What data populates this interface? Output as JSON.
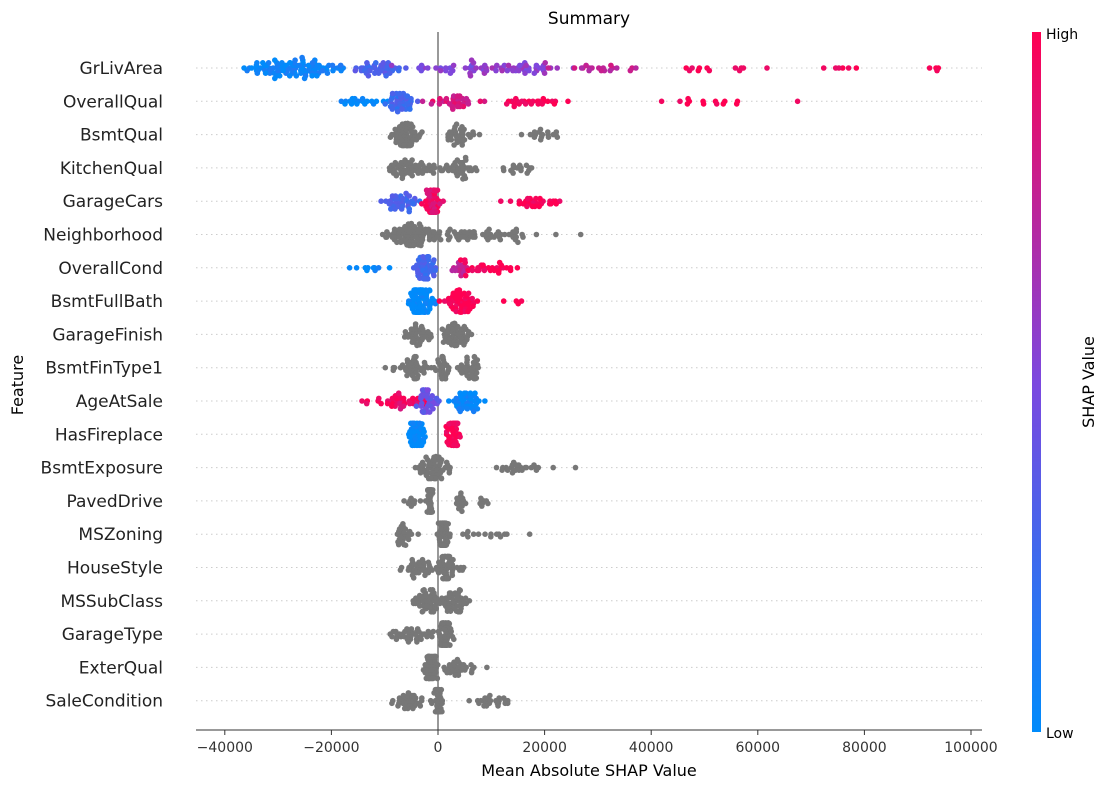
{
  "chart_data": {
    "type": "scatter",
    "subtype": "beeswarm",
    "title": "Summary",
    "xlabel": "Mean Absolute SHAP Value",
    "ylabel": "Feature",
    "xlim": [
      -45000,
      102000
    ],
    "xticks": [
      -40000,
      -20000,
      0,
      20000,
      40000,
      60000,
      80000,
      100000
    ],
    "xtick_labels": [
      "−40000",
      "−20000",
      "0",
      "20000",
      "40000",
      "60000",
      "80000",
      "100000"
    ],
    "colorbar": {
      "label": "SHAP Value",
      "high": "High",
      "low": "Low",
      "low_color": "#008bfb",
      "high_color": "#ff0052"
    },
    "features": [
      {
        "name": "GrLivArea",
        "colored": true,
        "clusters": [
          {
            "c": -26000,
            "s": 5000,
            "n": 90,
            "f": 0.05
          },
          {
            "c": -12000,
            "s": 2500,
            "n": 40,
            "f": 0.3
          },
          {
            "c": -32000,
            "s": 3500,
            "n": 15,
            "f": 0.0
          },
          {
            "c": 5000,
            "s": 6000,
            "n": 30,
            "f": 0.52
          },
          {
            "c": 16000,
            "s": 5000,
            "n": 40,
            "f": 0.58
          },
          {
            "c": 32000,
            "s": 6000,
            "n": 20,
            "f": 0.75
          },
          {
            "c": 52000,
            "s": 5000,
            "n": 12,
            "f": 0.95
          },
          {
            "c": 75000,
            "s": 4000,
            "n": 6,
            "f": 1.0
          },
          {
            "c": 93000,
            "s": 1500,
            "n": 4,
            "f": 1.0
          }
        ]
      },
      {
        "name": "OverallQual",
        "colored": true,
        "clusters": [
          {
            "c": -14000,
            "s": 2500,
            "n": 20,
            "f": 0.0
          },
          {
            "c": -7000,
            "s": 1500,
            "n": 40,
            "f": 0.25
          },
          {
            "c": 3000,
            "s": 2500,
            "n": 35,
            "f": 0.85
          },
          {
            "c": 18000,
            "s": 3500,
            "n": 25,
            "f": 1.0
          },
          {
            "c": 47000,
            "s": 4500,
            "n": 12,
            "f": 1.0
          },
          {
            "c": 60000,
            "s": 3000,
            "n": 2,
            "f": 1.0
          }
        ]
      },
      {
        "name": "BsmtQual",
        "colored": false,
        "clusters": [
          {
            "c": -6000,
            "s": 1300,
            "n": 60
          },
          {
            "c": 4000,
            "s": 1600,
            "n": 35
          },
          {
            "c": 19000,
            "s": 2500,
            "n": 18
          }
        ]
      },
      {
        "name": "KitchenQual",
        "colored": false,
        "clusters": [
          {
            "c": -5000,
            "s": 2500,
            "n": 55
          },
          {
            "c": 4000,
            "s": 1600,
            "n": 40
          },
          {
            "c": 15000,
            "s": 2000,
            "n": 15
          }
        ]
      },
      {
        "name": "GarageCars",
        "colored": true,
        "clusters": [
          {
            "c": -7000,
            "s": 1800,
            "n": 40,
            "f": 0.3
          },
          {
            "c": -1000,
            "s": 900,
            "n": 45,
            "f": 0.92
          },
          {
            "c": 18000,
            "s": 2500,
            "n": 30,
            "f": 1.0
          }
        ]
      },
      {
        "name": "Neighborhood",
        "colored": false,
        "clusters": [
          {
            "c": -5000,
            "s": 2500,
            "n": 80
          },
          {
            "c": 5000,
            "s": 4000,
            "n": 45
          },
          {
            "c": 14000,
            "s": 2500,
            "n": 15
          },
          {
            "c": 25000,
            "s": 3000,
            "n": 2
          }
        ]
      },
      {
        "name": "OverallCond",
        "colored": true,
        "clusters": [
          {
            "c": -13000,
            "s": 1800,
            "n": 10,
            "f": 0.0
          },
          {
            "c": -2500,
            "s": 800,
            "n": 50,
            "f": 0.28
          },
          {
            "c": 4500,
            "s": 800,
            "n": 15,
            "f": 0.75
          },
          {
            "c": 9000,
            "s": 2500,
            "n": 30,
            "f": 1.0
          }
        ]
      },
      {
        "name": "BsmtFullBath",
        "colored": true,
        "clusters": [
          {
            "c": -3500,
            "s": 1300,
            "n": 80,
            "f": 0.0
          },
          {
            "c": 4500,
            "s": 1400,
            "n": 55,
            "f": 1.0
          },
          {
            "c": 13500,
            "s": 2000,
            "n": 4,
            "f": 1.0
          }
        ]
      },
      {
        "name": "GarageFinish",
        "colored": false,
        "clusters": [
          {
            "c": -4000,
            "s": 1600,
            "n": 40
          },
          {
            "c": 3500,
            "s": 1200,
            "n": 55
          }
        ]
      },
      {
        "name": "BsmtFinType1",
        "colored": false,
        "clusters": [
          {
            "c": -5000,
            "s": 2000,
            "n": 45
          },
          {
            "c": 1000,
            "s": 500,
            "n": 30
          },
          {
            "c": 6000,
            "s": 1000,
            "n": 35
          }
        ]
      },
      {
        "name": "AgeAtSale",
        "colored": true,
        "clusters": [
          {
            "c": -12500,
            "s": 1500,
            "n": 6,
            "f": 1.0
          },
          {
            "c": -6000,
            "s": 2000,
            "n": 35,
            "f": 0.92
          },
          {
            "c": -2000,
            "s": 900,
            "n": 45,
            "f": 0.42
          },
          {
            "c": 5500,
            "s": 1300,
            "n": 45,
            "f": 0.03
          }
        ]
      },
      {
        "name": "HasFireplace",
        "colored": true,
        "clusters": [
          {
            "c": -4000,
            "s": 900,
            "n": 50,
            "f": 0.0
          },
          {
            "c": 3000,
            "s": 600,
            "n": 50,
            "f": 1.0
          }
        ]
      },
      {
        "name": "BsmtExposure",
        "colored": false,
        "clusters": [
          {
            "c": -1000,
            "s": 1400,
            "n": 60
          },
          {
            "c": 15000,
            "s": 2500,
            "n": 25
          },
          {
            "c": 25500,
            "s": 300,
            "n": 1
          }
        ]
      },
      {
        "name": "PavedDrive",
        "colored": false,
        "clusters": [
          {
            "c": -5000,
            "s": 700,
            "n": 10
          },
          {
            "c": -1500,
            "s": 300,
            "n": 50
          },
          {
            "c": 4000,
            "s": 600,
            "n": 15
          },
          {
            "c": 8500,
            "s": 500,
            "n": 8
          }
        ]
      },
      {
        "name": "MSZoning",
        "colored": false,
        "clusters": [
          {
            "c": -6500,
            "s": 1000,
            "n": 25
          },
          {
            "c": 1000,
            "s": 500,
            "n": 60
          },
          {
            "c": 8000,
            "s": 3000,
            "n": 15
          }
        ]
      },
      {
        "name": "HouseStyle",
        "colored": false,
        "clusters": [
          {
            "c": -4000,
            "s": 1500,
            "n": 35
          },
          {
            "c": 1500,
            "s": 800,
            "n": 50
          },
          {
            "c": 3500,
            "s": 1200,
            "n": 10
          }
        ]
      },
      {
        "name": "MSSubClass",
        "colored": false,
        "clusters": [
          {
            "c": -2000,
            "s": 1500,
            "n": 50
          },
          {
            "c": 3000,
            "s": 1500,
            "n": 45
          }
        ]
      },
      {
        "name": "GarageType",
        "colored": false,
        "clusters": [
          {
            "c": -5000,
            "s": 2000,
            "n": 40
          },
          {
            "c": 1500,
            "s": 600,
            "n": 60
          }
        ]
      },
      {
        "name": "ExterQual",
        "colored": false,
        "clusters": [
          {
            "c": -1500,
            "s": 700,
            "n": 50
          },
          {
            "c": 3500,
            "s": 2000,
            "n": 35
          },
          {
            "c": 10000,
            "s": 500,
            "n": 1
          }
        ]
      },
      {
        "name": "SaleCondition",
        "colored": false,
        "clusters": [
          {
            "c": -5000,
            "s": 1500,
            "n": 35
          },
          {
            "c": 0,
            "s": 400,
            "n": 45
          },
          {
            "c": 9000,
            "s": 2000,
            "n": 25
          }
        ]
      }
    ]
  }
}
